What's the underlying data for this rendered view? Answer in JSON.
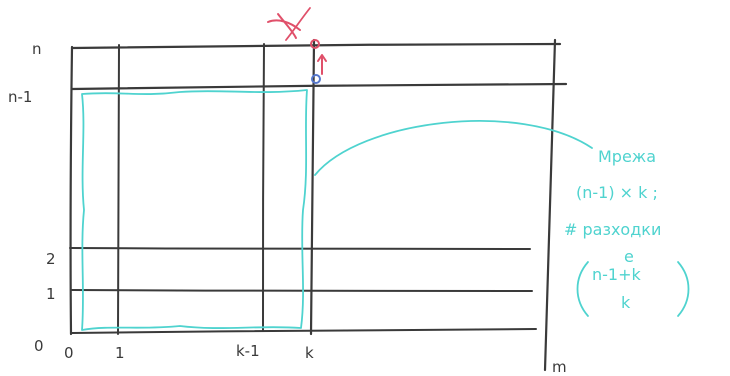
{
  "diagram": {
    "y_labels": {
      "n": "n",
      "n_minus_1": "n-1",
      "two": "2",
      "one": "1",
      "zero": "0"
    },
    "x_labels": {
      "zero": "0",
      "one": "1",
      "k_minus_1": "k-1",
      "k": "k",
      "m": "m"
    },
    "annotation": {
      "line1": "Мрежа",
      "line2": "(n-1) × k ;",
      "line3": "# разходки",
      "line4": "e",
      "binom_top": "n-1+k",
      "binom_bottom": "k"
    },
    "colors": {
      "grid": "#3a3a3a",
      "highlight": "#4fd3cf",
      "mark": "#e0506a",
      "point": "#5577cc"
    }
  }
}
